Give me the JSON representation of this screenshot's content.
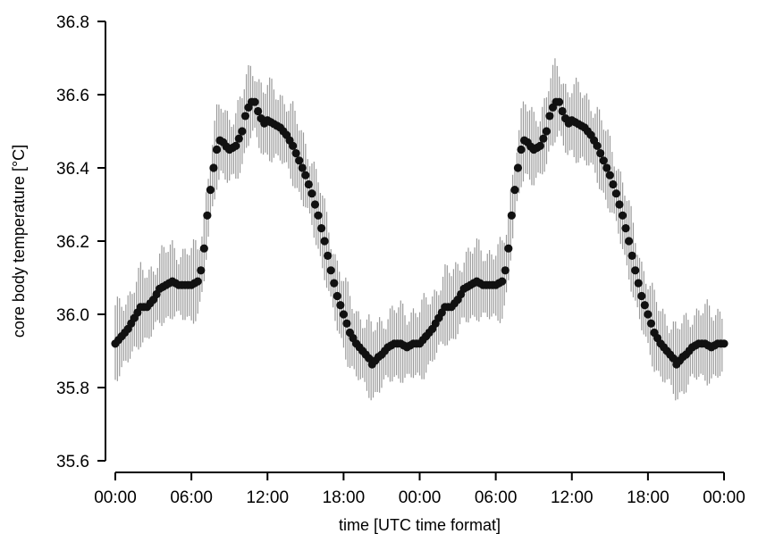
{
  "chart_data": {
    "type": "scatter",
    "xlabel": "time [UTC time format]",
    "ylabel": "core body temperature [°C]",
    "ylim": [
      35.6,
      36.8
    ],
    "y_ticks": [
      "35.6",
      "35.8",
      "36.0",
      "36.2",
      "36.4",
      "36.6",
      "36.8"
    ],
    "x_range_hours": [
      0,
      48
    ],
    "x_ticks": [
      "00:00",
      "06:00",
      "12:00",
      "18:00",
      "00:00",
      "06:00",
      "12:00",
      "18:00",
      "00:00"
    ],
    "grid": false,
    "legend": "none",
    "marker_color": "#111111",
    "error_bar_color": "#9a9a9a",
    "error_half_width": 0.09,
    "day_profile": [
      [
        0.0,
        35.92
      ],
      [
        0.5,
        35.94
      ],
      [
        1.0,
        35.96
      ],
      [
        1.5,
        35.99
      ],
      [
        2.0,
        36.02
      ],
      [
        2.5,
        36.02
      ],
      [
        3.0,
        36.04
      ],
      [
        3.5,
        36.07
      ],
      [
        4.0,
        36.08
      ],
      [
        4.5,
        36.09
      ],
      [
        5.0,
        36.08
      ],
      [
        5.5,
        36.08
      ],
      [
        6.0,
        36.08
      ],
      [
        6.5,
        36.09
      ],
      [
        6.75,
        36.12
      ],
      [
        7.0,
        36.18
      ],
      [
        7.25,
        36.27
      ],
      [
        7.5,
        36.34
      ],
      [
        7.75,
        36.4
      ],
      [
        8.0,
        36.45
      ],
      [
        8.3,
        36.48
      ],
      [
        8.7,
        36.46
      ],
      [
        9.0,
        36.45
      ],
      [
        9.5,
        36.46
      ],
      [
        10.0,
        36.5
      ],
      [
        10.3,
        36.55
      ],
      [
        10.7,
        36.58
      ],
      [
        11.0,
        36.58
      ],
      [
        11.3,
        36.55
      ],
      [
        11.7,
        36.52
      ],
      [
        12.0,
        36.53
      ],
      [
        12.5,
        36.52
      ],
      [
        13.0,
        36.51
      ],
      [
        13.5,
        36.49
      ],
      [
        14.0,
        36.46
      ],
      [
        14.5,
        36.42
      ],
      [
        15.0,
        36.38
      ],
      [
        15.5,
        36.33
      ],
      [
        16.0,
        36.27
      ],
      [
        16.5,
        36.2
      ],
      [
        17.0,
        36.12
      ],
      [
        17.5,
        36.05
      ],
      [
        18.0,
        36.0
      ],
      [
        18.5,
        35.95
      ],
      [
        19.0,
        35.92
      ],
      [
        19.5,
        35.9
      ],
      [
        20.0,
        35.88
      ],
      [
        20.3,
        35.86
      ],
      [
        20.6,
        35.88
      ],
      [
        21.0,
        35.89
      ],
      [
        21.5,
        35.91
      ],
      [
        22.0,
        35.92
      ],
      [
        22.5,
        35.92
      ],
      [
        23.0,
        35.91
      ],
      [
        23.5,
        35.92
      ],
      [
        24.0,
        35.92
      ]
    ]
  }
}
